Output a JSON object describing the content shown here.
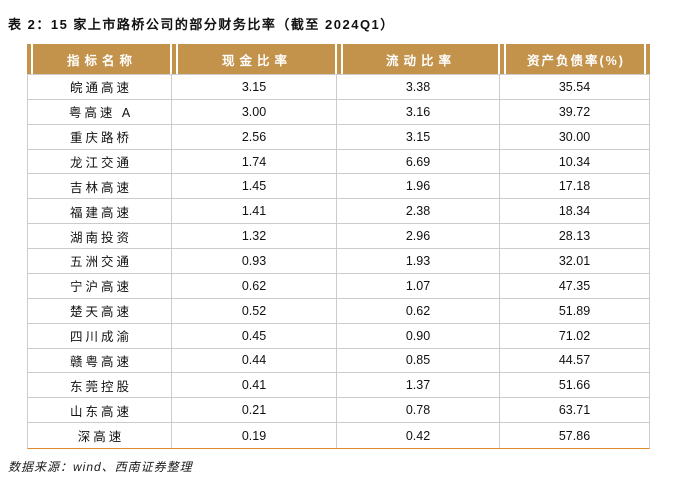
{
  "title": "表 2：15 家上市路桥公司的部分财务比率（截至 2024Q1）",
  "table": {
    "headers": [
      "指标名称",
      "现金比率",
      "流动比率",
      "资产负债率(%)"
    ],
    "rows": [
      [
        "皖通高速",
        "3.15",
        "3.38",
        "35.54"
      ],
      [
        "粤高速 A",
        "3.00",
        "3.16",
        "39.72"
      ],
      [
        "重庆路桥",
        "2.56",
        "3.15",
        "30.00"
      ],
      [
        "龙江交通",
        "1.74",
        "6.69",
        "10.34"
      ],
      [
        "吉林高速",
        "1.45",
        "1.96",
        "17.18"
      ],
      [
        "福建高速",
        "1.41",
        "2.38",
        "18.34"
      ],
      [
        "湖南投资",
        "1.32",
        "2.96",
        "28.13"
      ],
      [
        "五洲交通",
        "0.93",
        "1.93",
        "32.01"
      ],
      [
        "宁沪高速",
        "0.62",
        "1.07",
        "47.35"
      ],
      [
        "楚天高速",
        "0.52",
        "0.62",
        "51.89"
      ],
      [
        "四川成渝",
        "0.45",
        "0.90",
        "71.02"
      ],
      [
        "赣粤高速",
        "0.44",
        "0.85",
        "44.57"
      ],
      [
        "东莞控股",
        "0.41",
        "1.37",
        "51.66"
      ],
      [
        "山东高速",
        "0.21",
        "0.78",
        "63.71"
      ],
      [
        "深高速",
        "0.19",
        "0.42",
        "57.86"
      ]
    ]
  },
  "footer": {
    "source": "数据来源：wind、西南证券整理"
  },
  "colors": {
    "header_bg": "#C3924B",
    "grid_line": "#CCCCCC",
    "bottom_rule": "#DF8A2D",
    "header_text": "#FFFFFF"
  }
}
